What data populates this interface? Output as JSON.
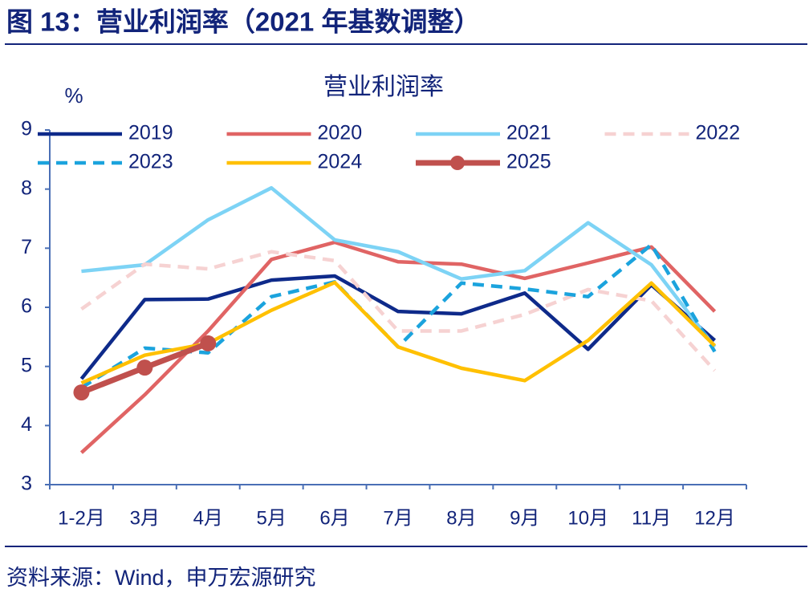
{
  "header": {
    "title": "图 13：营业利润率（2021 年基数调整）"
  },
  "chart_data": {
    "type": "line",
    "title": "营业利润率",
    "y_label": "%",
    "categories": [
      "1-2月",
      "3月",
      "4月",
      "5月",
      "6月",
      "7月",
      "8月",
      "9月",
      "10月",
      "11月",
      "12月"
    ],
    "ylim": [
      3,
      9
    ],
    "yticks": [
      3,
      4,
      5,
      6,
      7,
      8,
      9
    ],
    "series": [
      {
        "name": "2019",
        "color": "#0e2a8a",
        "values": [
          4.79,
          6.13,
          6.14,
          6.46,
          6.53,
          5.93,
          5.89,
          6.24,
          5.29,
          6.38,
          5.44
        ]
      },
      {
        "name": "2020",
        "color": "#e06464",
        "values": [
          3.54,
          4.52,
          5.6,
          6.81,
          7.1,
          6.77,
          6.73,
          6.49,
          6.75,
          7.02,
          5.93
        ]
      },
      {
        "name": "2021",
        "color": "#7dd3f5",
        "values": [
          6.61,
          6.72,
          7.48,
          8.02,
          7.14,
          6.94,
          6.48,
          6.62,
          7.43,
          6.72,
          5.33
        ]
      },
      {
        "name": "2022",
        "color": "#f6d2d2",
        "dashed": true,
        "values": [
          5.97,
          6.73,
          6.65,
          6.94,
          6.79,
          5.6,
          5.6,
          5.88,
          6.3,
          6.11,
          4.93
        ]
      },
      {
        "name": "2023",
        "color": "#1ba3dd",
        "dashed": true,
        "values": [
          4.64,
          5.31,
          5.23,
          6.18,
          6.43,
          5.33,
          6.41,
          6.31,
          6.18,
          7.06,
          5.25
        ]
      },
      {
        "name": "2024",
        "color": "#ffc000",
        "values": [
          4.72,
          5.19,
          5.39,
          5.95,
          6.42,
          5.33,
          4.97,
          4.76,
          5.44,
          6.41,
          5.35
        ]
      },
      {
        "name": "2025",
        "color": "#c0504d",
        "markers": true,
        "values": [
          4.56,
          4.98,
          5.39,
          null,
          null,
          null,
          null,
          null,
          null,
          null,
          null
        ]
      }
    ]
  },
  "footer": {
    "source": "资料来源：Wind，申万宏源研究"
  }
}
